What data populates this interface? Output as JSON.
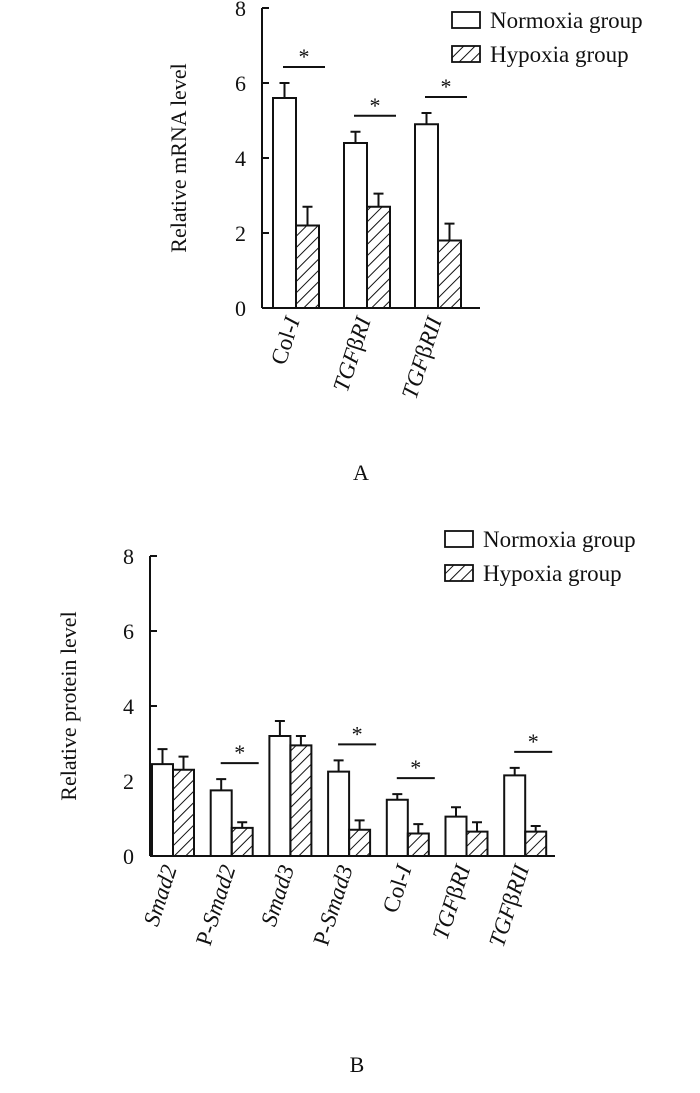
{
  "chart_data": [
    {
      "type": "bar",
      "panel_label": "A",
      "ylabel": "Relative mRNA  level",
      "ylim": [
        0,
        8
      ],
      "yticks": [
        "0",
        "2",
        "4",
        "6",
        "8"
      ],
      "legend": [
        "Normoxia group",
        "Hypoxia group"
      ],
      "legend_position": "top-right",
      "categories": [
        {
          "main": "Col-",
          "roman": "I"
        },
        {
          "main": "TGF",
          "greek": "β",
          "r": "R",
          "roman": "I"
        },
        {
          "main": "TGF",
          "greek": "β",
          "r": "R",
          "roman": "II"
        }
      ],
      "series": [
        {
          "name": "Normoxia group",
          "pattern": "open",
          "values": [
            5.6,
            4.4,
            4.9
          ],
          "errors": [
            0.4,
            0.3,
            0.3
          ]
        },
        {
          "name": "Hypoxia group",
          "pattern": "hatched",
          "values": [
            2.2,
            2.7,
            1.8
          ],
          "errors": [
            0.5,
            0.35,
            0.45
          ]
        }
      ],
      "significance": [
        "*",
        "*",
        "*"
      ]
    },
    {
      "type": "bar",
      "panel_label": "B",
      "ylabel": "Relative protein  level",
      "ylim": [
        0,
        8
      ],
      "yticks": [
        "0",
        "2",
        "4",
        "6",
        "8"
      ],
      "legend": [
        "Normoxia group",
        "Hypoxia group"
      ],
      "legend_position": "top-right",
      "categories": [
        {
          "main": "Smad2"
        },
        {
          "main": "P-Smad2"
        },
        {
          "main": "Smad3"
        },
        {
          "main": "P-Smad3"
        },
        {
          "main": "Col-",
          "roman": "I"
        },
        {
          "main": "TGF",
          "greek": "β",
          "r": "R",
          "roman": "I"
        },
        {
          "main": "TGF",
          "greek": "β",
          "r": "R",
          "roman": "II"
        }
      ],
      "series": [
        {
          "name": "Normoxia group",
          "pattern": "open",
          "values": [
            2.45,
            1.75,
            3.2,
            2.25,
            1.5,
            1.05,
            2.15
          ],
          "errors": [
            0.4,
            0.3,
            0.4,
            0.3,
            0.15,
            0.25,
            0.2
          ]
        },
        {
          "name": "Hypoxia group",
          "pattern": "hatched",
          "values": [
            2.3,
            0.75,
            2.95,
            0.7,
            0.6,
            0.65,
            0.65
          ],
          "errors": [
            0.35,
            0.15,
            0.25,
            0.25,
            0.25,
            0.25,
            0.15
          ]
        }
      ],
      "significance": [
        "",
        "*",
        "",
        "*",
        "*",
        "",
        "*"
      ]
    }
  ]
}
